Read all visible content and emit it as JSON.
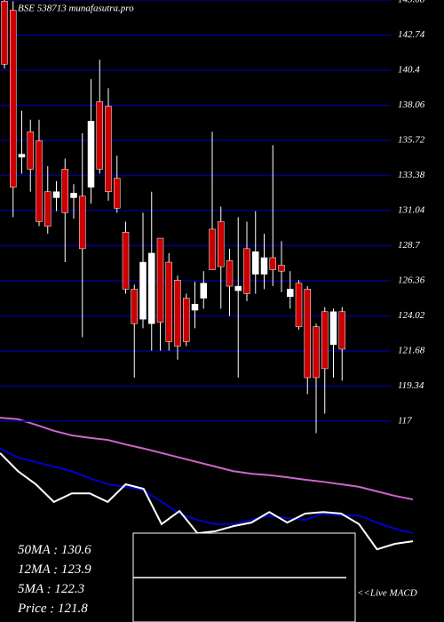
{
  "chart_data": [
    {
      "type": "candlestick",
      "title": "BSE 538713 munafasutra.pro",
      "open": [
        145,
        144.4,
        134.6,
        136.3,
        135.7,
        132.3,
        131.9,
        133.8,
        131.9,
        132.0,
        132.6,
        138.3,
        138.0,
        133.2,
        129.6,
        125.8,
        123.8,
        123.5,
        129.2,
        127.6,
        126.4,
        125.2,
        124.4,
        125.2,
        129.8,
        130.3,
        127.7,
        125.7,
        128.5,
        126.8,
        126.8,
        127.9,
        127.4,
        125.3,
        126.2,
        125.8,
        123.3,
        124.3,
        122.1,
        124.3
      ],
      "high": [
        145.1,
        145,
        137.7,
        137.1,
        137.1,
        134.0,
        133,
        134.5,
        132.8,
        136.2,
        139.8,
        141.1,
        139.2,
        134.7,
        130.3,
        126.1,
        130.9,
        132.3,
        129.2,
        128.2,
        126.7,
        125.5,
        126.3,
        127,
        136.3,
        131.3,
        128.5,
        130.6,
        130.3,
        131,
        129.5,
        135.4,
        129,
        127,
        126.4,
        126,
        123.5,
        124.6,
        124.5,
        124.6
      ],
      "low": [
        140.5,
        130.6,
        133.5,
        132.3,
        130.0,
        129.5,
        131,
        127.6,
        130.5,
        122.6,
        131.5,
        133.5,
        131.7,
        130.9,
        125.5,
        119.9,
        123.2,
        121.7,
        121.7,
        121.7,
        121.1,
        122.0,
        123.2,
        124.5,
        127.1,
        124.5,
        124.0,
        119.9,
        125.0,
        125.5,
        125.8,
        126.0,
        125.6,
        124.5,
        123.1,
        118.8,
        116.2,
        117.5,
        119.9,
        119.7
      ],
      "close": [
        140.8,
        132.6,
        134.8,
        133.8,
        130.3,
        130.0,
        132.3,
        130.9,
        132.2,
        128.5,
        137.0,
        133.8,
        132.3,
        131.2,
        125.8,
        123.5,
        127.6,
        128.2,
        123.6,
        122.3,
        122.0,
        122.3,
        124.8,
        126.2,
        127.1,
        127.3,
        126.0,
        126.0,
        125.5,
        128.3,
        127.9,
        127.1,
        127.0,
        125.8,
        123.3,
        119.9,
        119.9,
        120.5,
        124.3,
        121.8
      ],
      "price_label": "Price",
      "ylim": [
        116.05,
        145.08
      ],
      "yticks": [
        145.08,
        142.74,
        140.4,
        138.06,
        135.72,
        133.38,
        131.04,
        128.7,
        126.36,
        124.02,
        121.68,
        119.34,
        117
      ],
      "grid": true,
      "grid_color": "#00008b",
      "up_color": "#ffffff",
      "down_color": "#cc0000"
    },
    {
      "type": "line",
      "series": [
        {
          "name": "50MA",
          "color": "#cc66cc",
          "values": [
            146.8,
            146.5,
            145.4,
            144.2,
            143.3,
            142.8,
            142.4,
            141.5,
            140.7,
            139.8,
            138.9,
            138.0,
            137.1,
            136.2,
            135.7,
            135.4,
            135.0,
            134.5,
            134.1,
            133.6,
            133.1,
            132.2,
            131.3,
            130.6
          ]
        },
        {
          "name": "12MA",
          "color": "#0000cc",
          "values": [
            140.7,
            138.9,
            138.0,
            137.1,
            136.2,
            134.8,
            133.6,
            133.1,
            132.4,
            130.1,
            127.8,
            126.5,
            125.7,
            125.7,
            126.5,
            127.4,
            126.9,
            126.5,
            127.8,
            127.4,
            127.4,
            126.0,
            124.8,
            123.9
          ]
        },
        {
          "name": "5MA",
          "color": "#ffffff",
          "values": [
            139.8,
            136.2,
            133.6,
            130.1,
            131.8,
            131.8,
            130.1,
            133.6,
            132.7,
            125.7,
            128.3,
            123.9,
            124.3,
            125.3,
            126.0,
            128.1,
            126.0,
            127.8,
            128.1,
            127.8,
            125.7,
            120.7,
            121.8,
            122.3
          ]
        }
      ],
      "ylim": [
        106.3,
        152.1
      ],
      "annotation": "<<Live MACD"
    }
  ]
}
